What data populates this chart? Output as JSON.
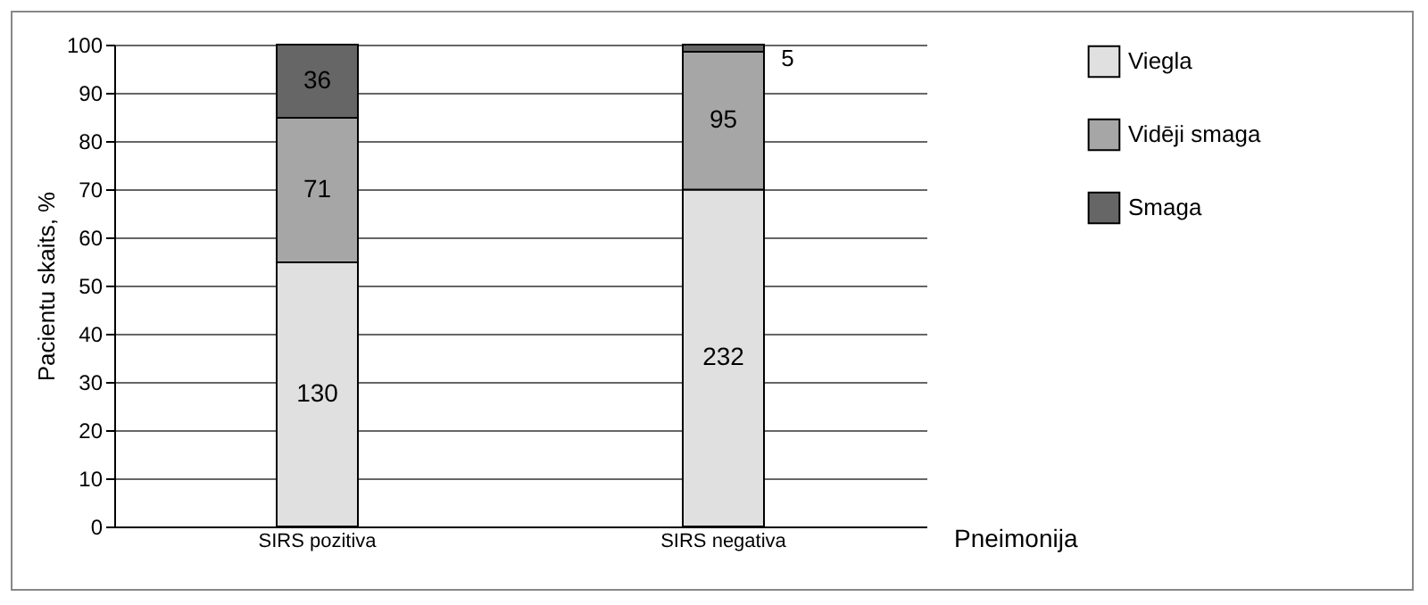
{
  "chart_data": {
    "type": "bar",
    "stacked": true,
    "ylabel": "Pacientu skaits, %",
    "xlabel": "Pneimonija",
    "categories": [
      "SIRS pozitiva",
      "SIRS negativa"
    ],
    "series": [
      {
        "name": "Viegla",
        "color": "#e0e0e0",
        "values": [
          54.8,
          69.9
        ]
      },
      {
        "name": "Vidēji smaga",
        "color": "#a6a6a6",
        "values": [
          30.0,
          28.6
        ]
      },
      {
        "name": "Smaga",
        "color": "#666666",
        "values": [
          15.2,
          1.5
        ]
      }
    ],
    "annotations": [
      "130",
      "71",
      "36",
      "232",
      "95",
      "5"
    ],
    "ylim": [
      0,
      100
    ],
    "yticks": [
      0,
      10,
      20,
      30,
      40,
      50,
      60,
      70,
      80,
      90,
      100
    ],
    "grid": "y",
    "legend": "right"
  }
}
